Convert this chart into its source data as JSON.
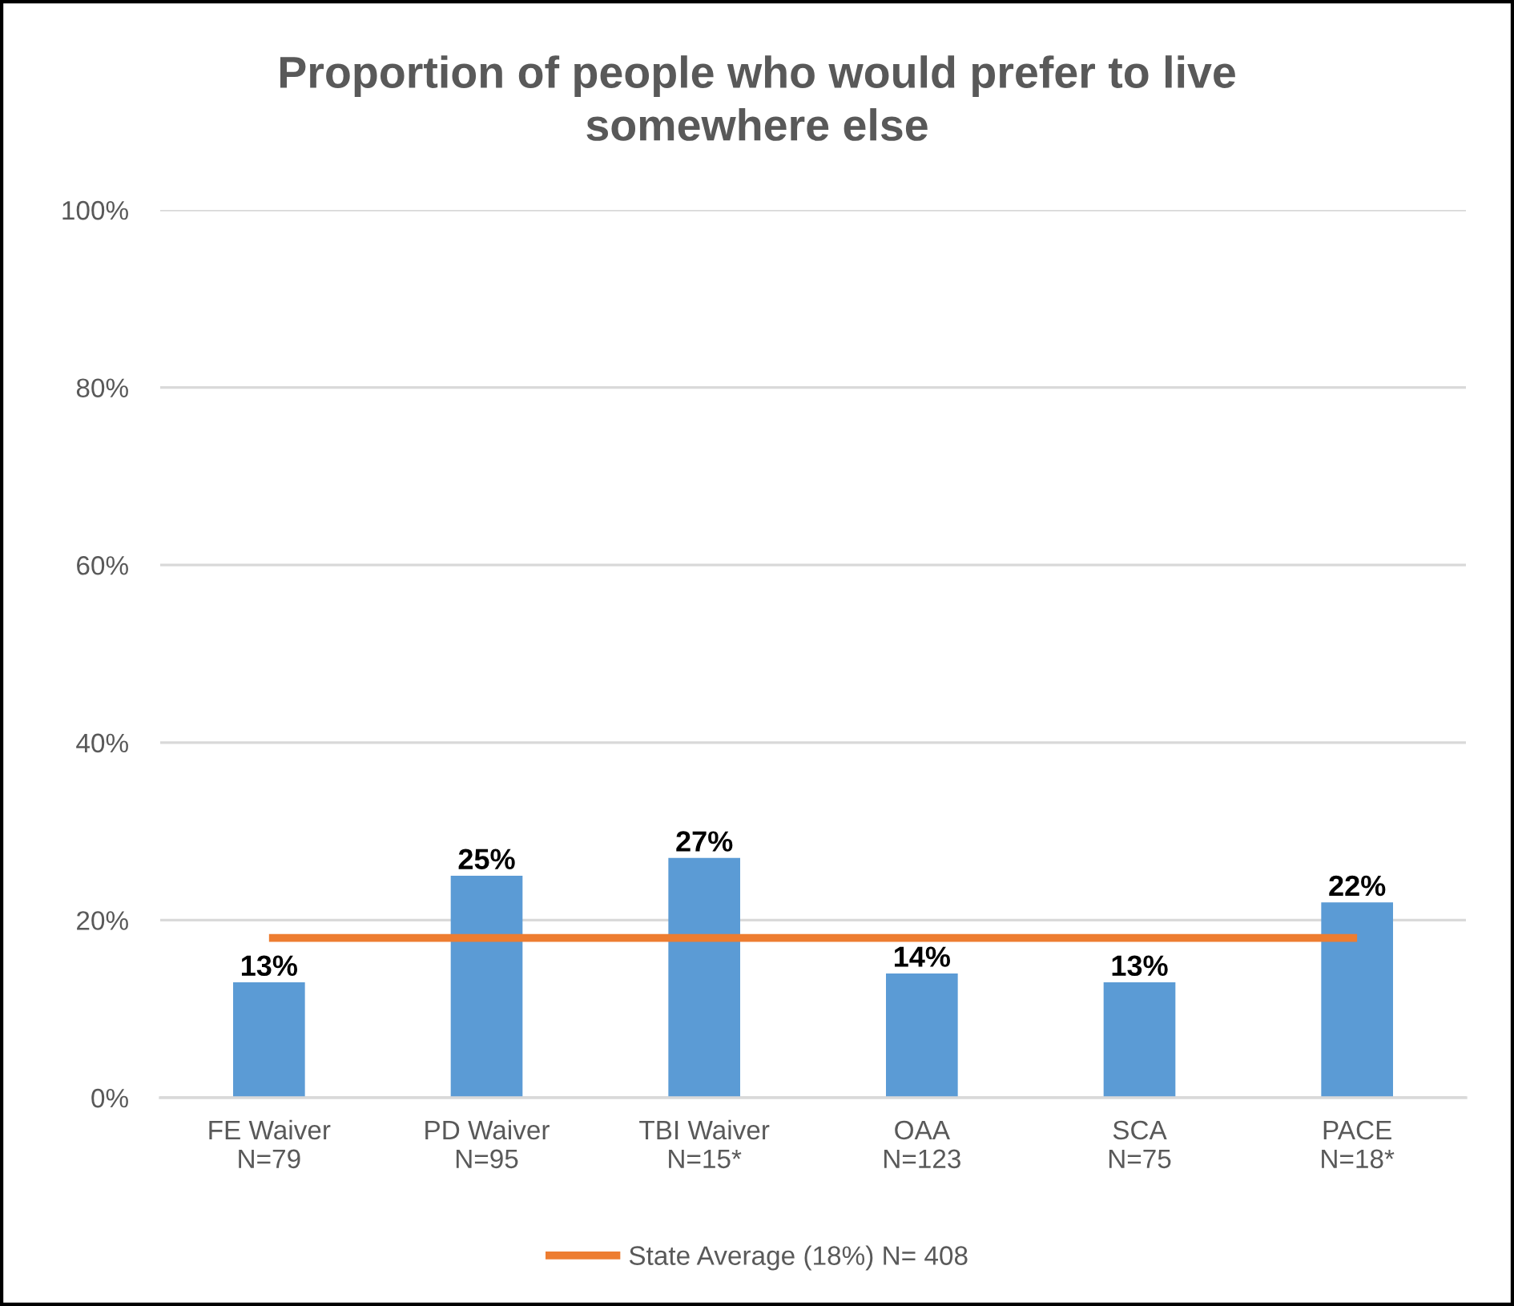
{
  "chart_data": {
    "type": "bar",
    "title": "Proportion of people who would prefer to live\nsomewhere else",
    "categories": [
      "FE Waiver\nN=79",
      "PD Waiver\nN=95",
      "TBI Waiver\nN=15*",
      "OAA\nN=123",
      "SCA\nN=75",
      "PACE\nN=18*"
    ],
    "series": [
      {
        "color": "#5b9bd5",
        "values": [
          13,
          25,
          27,
          14,
          13,
          22
        ],
        "value_labels": [
          "13%",
          "25%",
          "27%",
          "14%",
          "13%",
          "22%"
        ]
      },
      {
        "type": "line",
        "name": "State Average (18%) N= 408",
        "color": "#ed7d31",
        "values": [
          18,
          18,
          18,
          18,
          18,
          18
        ]
      }
    ],
    "ylim": [
      0,
      100
    ],
    "yticks": [
      {
        "value": 0,
        "label": "0%"
      },
      {
        "value": 20,
        "label": "20%"
      },
      {
        "value": 40,
        "label": "40%"
      },
      {
        "value": 60,
        "label": "60%"
      },
      {
        "value": 80,
        "label": "80%"
      },
      {
        "value": 100,
        "label": "100%"
      }
    ],
    "grid": "y",
    "legend": "bottom"
  }
}
